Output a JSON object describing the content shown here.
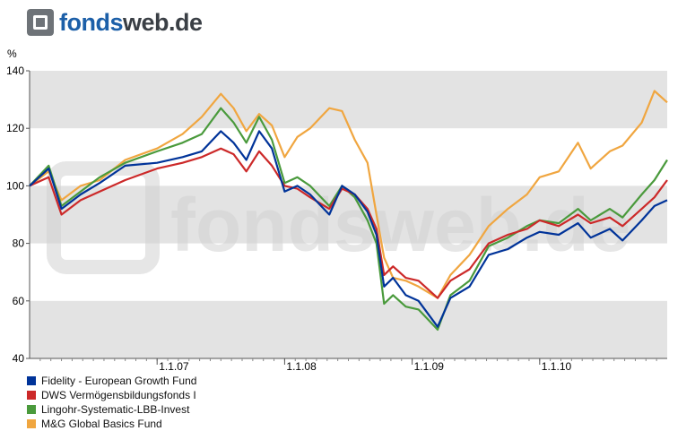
{
  "brand": {
    "name_bold": "fonds",
    "name_light": "web.de",
    "watermark": "fondsweb.de"
  },
  "chart_data": {
    "type": "line",
    "unit_label": "%",
    "ylim": [
      40,
      140
    ],
    "yticks": [
      40,
      60,
      80,
      100,
      120,
      140
    ],
    "xlim": [
      2006.0,
      2011.0
    ],
    "xticks": [
      {
        "value": 2007.0,
        "label": "1.1.07"
      },
      {
        "value": 2008.0,
        "label": "1.1.08"
      },
      {
        "value": 2009.0,
        "label": "1.1.09"
      },
      {
        "value": 2010.0,
        "label": "1.1.10"
      }
    ],
    "grid": true,
    "legend_position": "bottom-left",
    "series": [
      {
        "name": "Fidelity - European Growth Fund",
        "color": "#003399",
        "points": [
          [
            2006.0,
            100
          ],
          [
            2006.15,
            106
          ],
          [
            2006.25,
            92
          ],
          [
            2006.4,
            97
          ],
          [
            2006.55,
            101
          ],
          [
            2006.75,
            107
          ],
          [
            2007.0,
            108
          ],
          [
            2007.2,
            110
          ],
          [
            2007.35,
            112
          ],
          [
            2007.5,
            119
          ],
          [
            2007.6,
            115
          ],
          [
            2007.7,
            109
          ],
          [
            2007.8,
            119
          ],
          [
            2007.9,
            113
          ],
          [
            2008.0,
            98
          ],
          [
            2008.1,
            100
          ],
          [
            2008.2,
            97
          ],
          [
            2008.35,
            90
          ],
          [
            2008.45,
            100
          ],
          [
            2008.55,
            97
          ],
          [
            2008.65,
            91
          ],
          [
            2008.72,
            83
          ],
          [
            2008.78,
            65
          ],
          [
            2008.85,
            68
          ],
          [
            2008.95,
            62
          ],
          [
            2009.05,
            60
          ],
          [
            2009.2,
            51
          ],
          [
            2009.3,
            61
          ],
          [
            2009.45,
            65
          ],
          [
            2009.6,
            76
          ],
          [
            2009.75,
            78
          ],
          [
            2009.9,
            82
          ],
          [
            2010.0,
            84
          ],
          [
            2010.15,
            83
          ],
          [
            2010.3,
            87
          ],
          [
            2010.4,
            82
          ],
          [
            2010.55,
            85
          ],
          [
            2010.65,
            81
          ],
          [
            2010.8,
            88
          ],
          [
            2010.9,
            93
          ],
          [
            2011.0,
            95
          ]
        ]
      },
      {
        "name": "DWS Vermögensbildungsfonds I",
        "color": "#cc2929",
        "points": [
          [
            2006.0,
            100
          ],
          [
            2006.15,
            103
          ],
          [
            2006.25,
            90
          ],
          [
            2006.4,
            95
          ],
          [
            2006.55,
            98
          ],
          [
            2006.75,
            102
          ],
          [
            2007.0,
            106
          ],
          [
            2007.2,
            108
          ],
          [
            2007.35,
            110
          ],
          [
            2007.5,
            113
          ],
          [
            2007.6,
            111
          ],
          [
            2007.7,
            105
          ],
          [
            2007.8,
            112
          ],
          [
            2007.9,
            107
          ],
          [
            2008.0,
            100
          ],
          [
            2008.1,
            99
          ],
          [
            2008.2,
            96
          ],
          [
            2008.35,
            92
          ],
          [
            2008.45,
            99
          ],
          [
            2008.55,
            97
          ],
          [
            2008.65,
            92
          ],
          [
            2008.72,
            85
          ],
          [
            2008.78,
            69
          ],
          [
            2008.85,
            72
          ],
          [
            2008.95,
            68
          ],
          [
            2009.05,
            67
          ],
          [
            2009.2,
            61
          ],
          [
            2009.3,
            67
          ],
          [
            2009.45,
            71
          ],
          [
            2009.6,
            80
          ],
          [
            2009.75,
            83
          ],
          [
            2009.9,
            85
          ],
          [
            2010.0,
            88
          ],
          [
            2010.15,
            86
          ],
          [
            2010.3,
            90
          ],
          [
            2010.4,
            87
          ],
          [
            2010.55,
            89
          ],
          [
            2010.65,
            86
          ],
          [
            2010.8,
            92
          ],
          [
            2010.9,
            96
          ],
          [
            2011.0,
            102
          ]
        ]
      },
      {
        "name": "Lingohr-Systematic-LBB-Invest",
        "color": "#4a9a3c",
        "points": [
          [
            2006.0,
            100
          ],
          [
            2006.15,
            107
          ],
          [
            2006.25,
            93
          ],
          [
            2006.4,
            98
          ],
          [
            2006.55,
            103
          ],
          [
            2006.75,
            108
          ],
          [
            2007.0,
            112
          ],
          [
            2007.2,
            115
          ],
          [
            2007.35,
            118
          ],
          [
            2007.5,
            127
          ],
          [
            2007.6,
            122
          ],
          [
            2007.7,
            115
          ],
          [
            2007.8,
            124
          ],
          [
            2007.9,
            116
          ],
          [
            2008.0,
            101
          ],
          [
            2008.1,
            103
          ],
          [
            2008.2,
            100
          ],
          [
            2008.35,
            93
          ],
          [
            2008.45,
            100
          ],
          [
            2008.55,
            96
          ],
          [
            2008.65,
            88
          ],
          [
            2008.72,
            80
          ],
          [
            2008.78,
            59
          ],
          [
            2008.85,
            62
          ],
          [
            2008.95,
            58
          ],
          [
            2009.05,
            57
          ],
          [
            2009.2,
            50
          ],
          [
            2009.3,
            62
          ],
          [
            2009.45,
            67
          ],
          [
            2009.6,
            79
          ],
          [
            2009.75,
            82
          ],
          [
            2009.9,
            86
          ],
          [
            2010.0,
            88
          ],
          [
            2010.15,
            87
          ],
          [
            2010.3,
            92
          ],
          [
            2010.4,
            88
          ],
          [
            2010.55,
            92
          ],
          [
            2010.65,
            89
          ],
          [
            2010.8,
            97
          ],
          [
            2010.9,
            102
          ],
          [
            2011.0,
            109
          ]
        ]
      },
      {
        "name": "M&G Global Basics Fund",
        "color": "#f0a640",
        "points": [
          [
            2006.0,
            100
          ],
          [
            2006.15,
            105
          ],
          [
            2006.25,
            95
          ],
          [
            2006.4,
            100
          ],
          [
            2006.55,
            102
          ],
          [
            2006.75,
            109
          ],
          [
            2007.0,
            113
          ],
          [
            2007.2,
            118
          ],
          [
            2007.35,
            124
          ],
          [
            2007.5,
            132
          ],
          [
            2007.6,
            127
          ],
          [
            2007.7,
            119
          ],
          [
            2007.8,
            125
          ],
          [
            2007.9,
            121
          ],
          [
            2008.0,
            110
          ],
          [
            2008.1,
            117
          ],
          [
            2008.2,
            120
          ],
          [
            2008.35,
            127
          ],
          [
            2008.45,
            126
          ],
          [
            2008.55,
            116
          ],
          [
            2008.65,
            108
          ],
          [
            2008.72,
            90
          ],
          [
            2008.78,
            75
          ],
          [
            2008.85,
            68
          ],
          [
            2008.95,
            67
          ],
          [
            2009.05,
            65
          ],
          [
            2009.2,
            61
          ],
          [
            2009.3,
            69
          ],
          [
            2009.45,
            76
          ],
          [
            2009.6,
            86
          ],
          [
            2009.75,
            92
          ],
          [
            2009.9,
            97
          ],
          [
            2010.0,
            103
          ],
          [
            2010.15,
            105
          ],
          [
            2010.3,
            115
          ],
          [
            2010.4,
            106
          ],
          [
            2010.55,
            112
          ],
          [
            2010.65,
            114
          ],
          [
            2010.8,
            122
          ],
          [
            2010.9,
            133
          ],
          [
            2011.0,
            129
          ]
        ]
      }
    ]
  }
}
